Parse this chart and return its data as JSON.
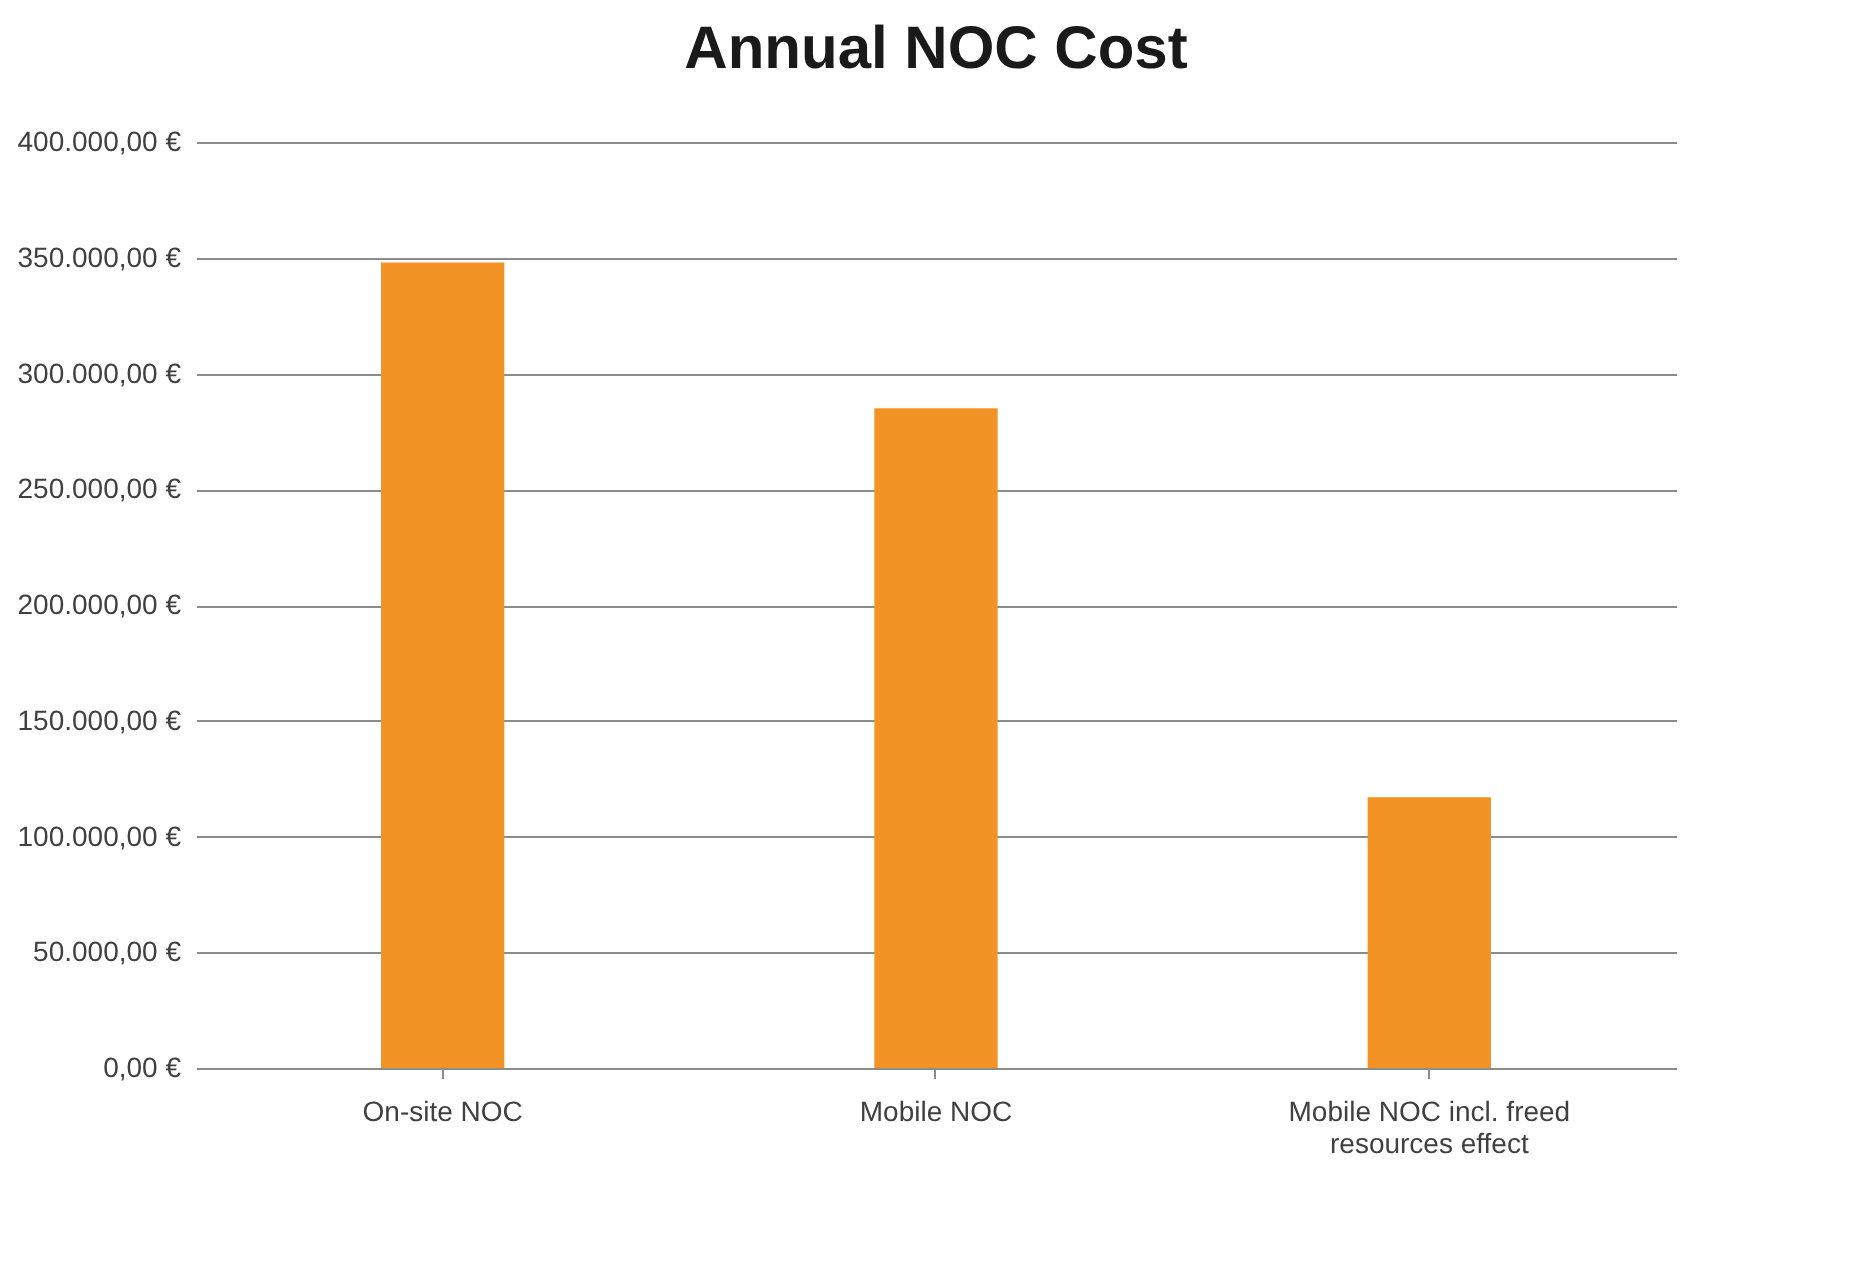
{
  "chart_data": {
    "type": "bar",
    "title": "Annual NOC Cost",
    "categories": [
      "On-site NOC",
      "Mobile NOC",
      "Mobile NOC incl. freed resources effect"
    ],
    "values": [
      348000,
      285000,
      117000
    ],
    "color": "#f39325",
    "ylim": [
      0,
      400000
    ],
    "yticks": [
      {
        "value": 0,
        "label": "0,00 €"
      },
      {
        "value": 50000,
        "label": "50.000,00 €"
      },
      {
        "value": 100000,
        "label": "100.000,00 €"
      },
      {
        "value": 150000,
        "label": "150.000,00 €"
      },
      {
        "value": 200000,
        "label": "200.000,00 €"
      },
      {
        "value": 250000,
        "label": "250.000,00 €"
      },
      {
        "value": 300000,
        "label": "300.000,00 €"
      },
      {
        "value": 350000,
        "label": "350.000,00 €"
      },
      {
        "value": 400000,
        "label": "400.000,00 €"
      }
    ],
    "grid": "y"
  }
}
